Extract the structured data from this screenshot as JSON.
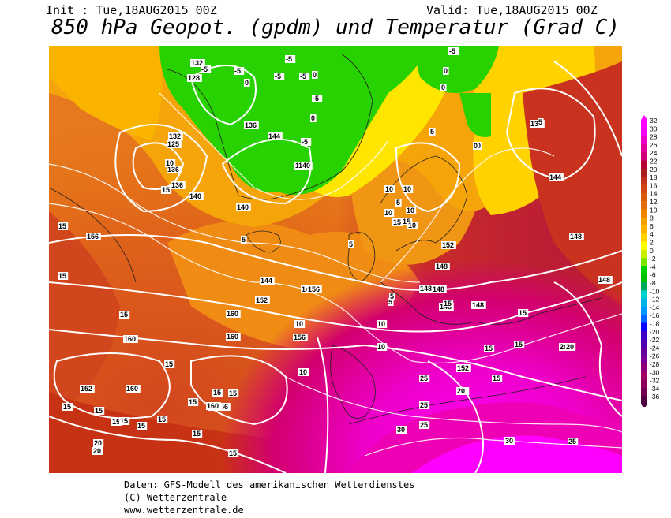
{
  "header": {
    "init": "Init : Tue,18AUG2015 00Z",
    "valid": "Valid: Tue,18AUG2015 00Z",
    "title": "850 hPa Geopot. (gpdm) und Temperatur (Grad C)"
  },
  "legend": {
    "values": [
      "32",
      "30",
      "28",
      "26",
      "24",
      "22",
      "20",
      "18",
      "16",
      "14",
      "12",
      "10",
      "8",
      "6",
      "4",
      "2",
      "0",
      "-2",
      "-4",
      "-6",
      "-8",
      "-10",
      "-12",
      "-14",
      "-16",
      "-18",
      "-20",
      "-22",
      "-24",
      "-26",
      "-28",
      "-30",
      "-32",
      "-34",
      "-36"
    ],
    "colors": [
      "#ff00ff",
      "#f500f0",
      "#ee00c8",
      "#e0009c",
      "#d20078",
      "#b40032",
      "#aa1e1e",
      "#c0321e",
      "#d24614",
      "#dc5a0a",
      "#e66e0a",
      "#f08200",
      "#f5a000",
      "#fab400",
      "#ffd200",
      "#ffff00",
      "#c8f000",
      "#7de600",
      "#00d200",
      "#00c300",
      "#00a85a",
      "#00d2d2",
      "#00b4e6",
      "#0096ff",
      "#0064ff",
      "#0000ff",
      "#3c00c8",
      "#5000b4",
      "#6400a0",
      "#780096",
      "#8c0078",
      "#a00064",
      "#8a005a",
      "#700050",
      "#500040"
    ]
  },
  "map_labels": {
    "geopotential": [
      "132",
      "128",
      "132",
      "136",
      "144",
      "136",
      "140",
      "132",
      "125",
      "136",
      "140",
      "140",
      "144",
      "148",
      "152",
      "156",
      "160",
      "160",
      "156",
      "152",
      "156",
      "148",
      "148",
      "148",
      "148",
      "148",
      "148",
      "152",
      "160",
      "160",
      "160",
      "152",
      "156",
      "152",
      "144",
      "148",
      "140"
    ],
    "temperature": [
      "-5",
      "-5",
      "-5",
      "0",
      "-5",
      "-5",
      "0",
      "-5",
      "-5",
      "0",
      "0",
      "5",
      "5",
      "-5",
      "0",
      "0",
      "5",
      "0",
      "10",
      "10",
      "15",
      "10",
      "15",
      "15",
      "15",
      "15",
      "10",
      "10",
      "15",
      "10",
      "5",
      "5",
      "5",
      "10",
      "10",
      "5",
      "10",
      "15",
      "15",
      "15",
      "15",
      "15",
      "15",
      "15",
      "15",
      "15",
      "15",
      "20",
      "20",
      "25",
      "30",
      "25",
      "20",
      "30",
      "25",
      "15",
      "15",
      "25",
      "20",
      "15",
      "10",
      "15",
      "15",
      "15",
      "15",
      "20",
      "20"
    ]
  },
  "footer": {
    "line1": "Daten: GFS-Modell des amerikanischen Wetterdienstes",
    "line2": "(C) Wetterzentrale",
    "line3": "www.wetterzentrale.de"
  }
}
